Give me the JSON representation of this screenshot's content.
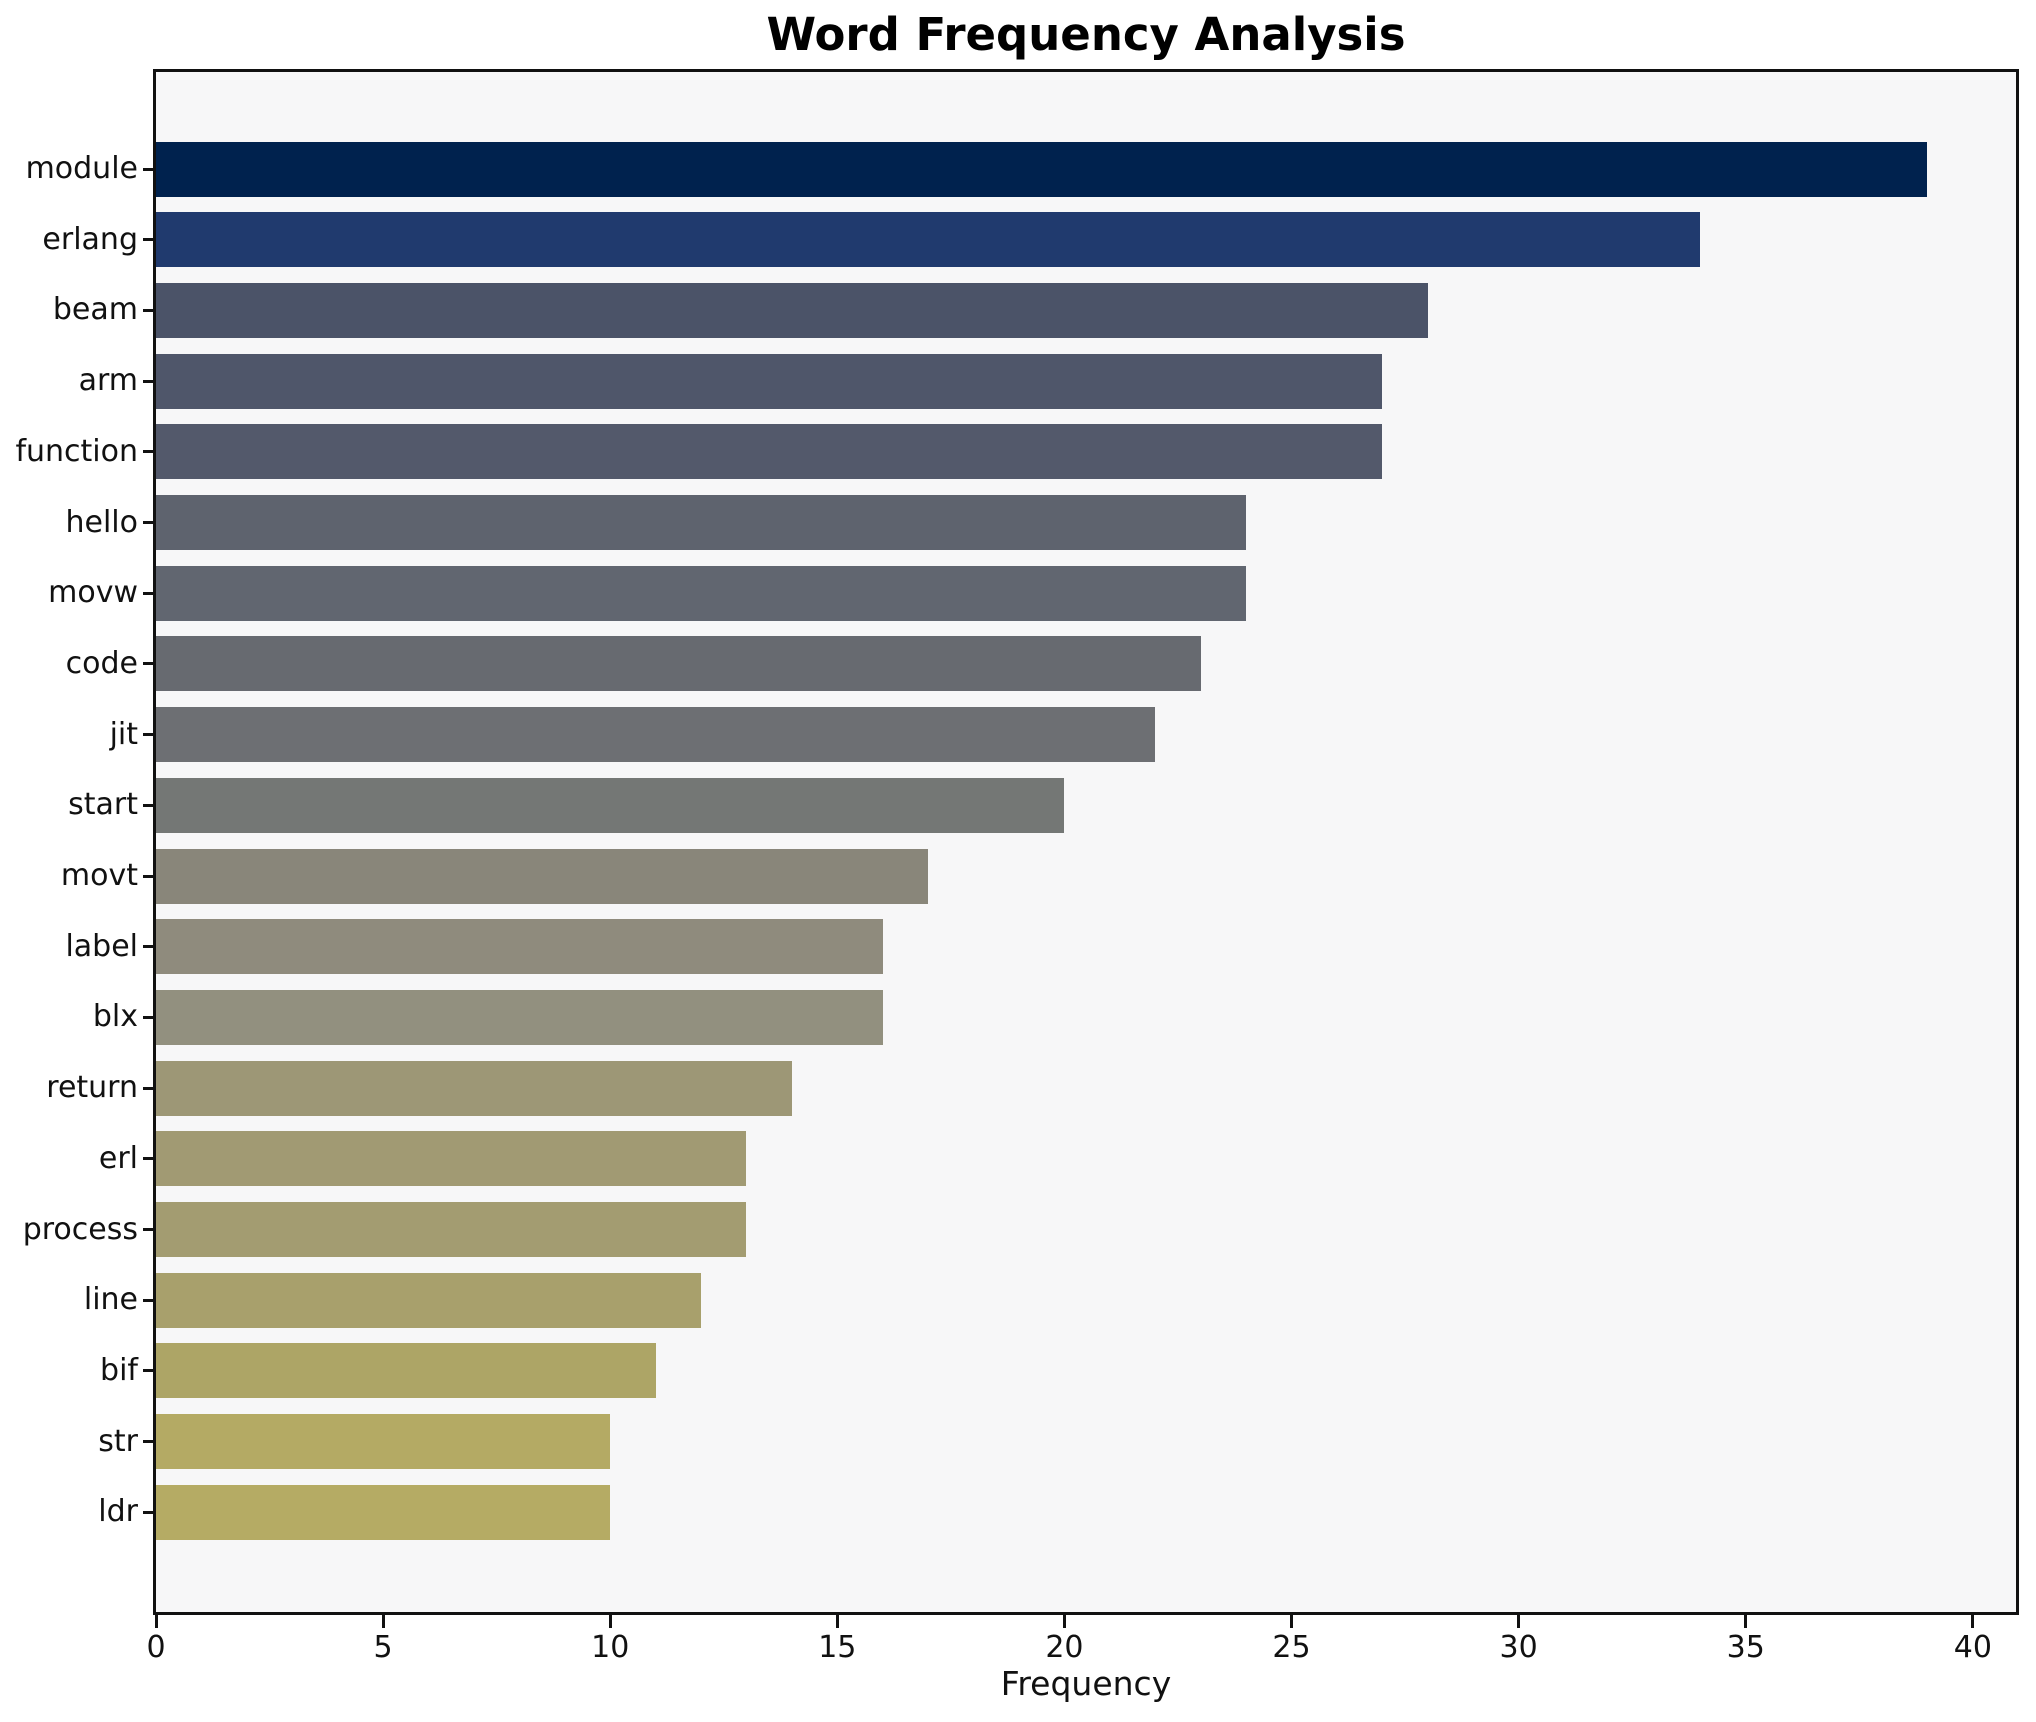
{
  "figure": {
    "background_color": "#ffffff",
    "plot_background_color": "#f7f7f8",
    "spine_color": "#111111",
    "tick_color": "#111111",
    "text_color": "#111111"
  },
  "chart_data": {
    "type": "bar",
    "orientation": "horizontal",
    "title": "Word Frequency Analysis",
    "xlabel": "Frequency",
    "ylabel": "",
    "grid": false,
    "legend": null,
    "xlim": [
      0,
      40.95
    ],
    "xticks": [
      0,
      5,
      10,
      15,
      20,
      25,
      30,
      35,
      40
    ],
    "xtick_labels": [
      "0",
      "5",
      "10",
      "15",
      "20",
      "25",
      "30",
      "35",
      "40"
    ],
    "categories": [
      "module",
      "erlang",
      "beam",
      "arm",
      "function",
      "hello",
      "movw",
      "code",
      "jit",
      "start",
      "movt",
      "label",
      "blx",
      "return",
      "erl",
      "process",
      "line",
      "bif",
      "str",
      "ldr"
    ],
    "values": [
      39,
      34,
      28,
      27,
      27,
      24,
      24,
      23,
      22,
      20,
      17,
      16,
      16,
      14,
      13,
      13,
      12,
      11,
      10,
      10
    ],
    "bar_colors": [
      "#00224e",
      "#203a6e",
      "#4b5368",
      "#4f566a",
      "#53596b",
      "#5e636e",
      "#616670",
      "#676a70",
      "#6d6f73",
      "#747775",
      "#89867a",
      "#8f8b7d",
      "#92907f",
      "#9d9776",
      "#a19a73",
      "#a39c71",
      "#a8a06c",
      "#ada566",
      "#b4aa64",
      "#b5ab64"
    ]
  }
}
